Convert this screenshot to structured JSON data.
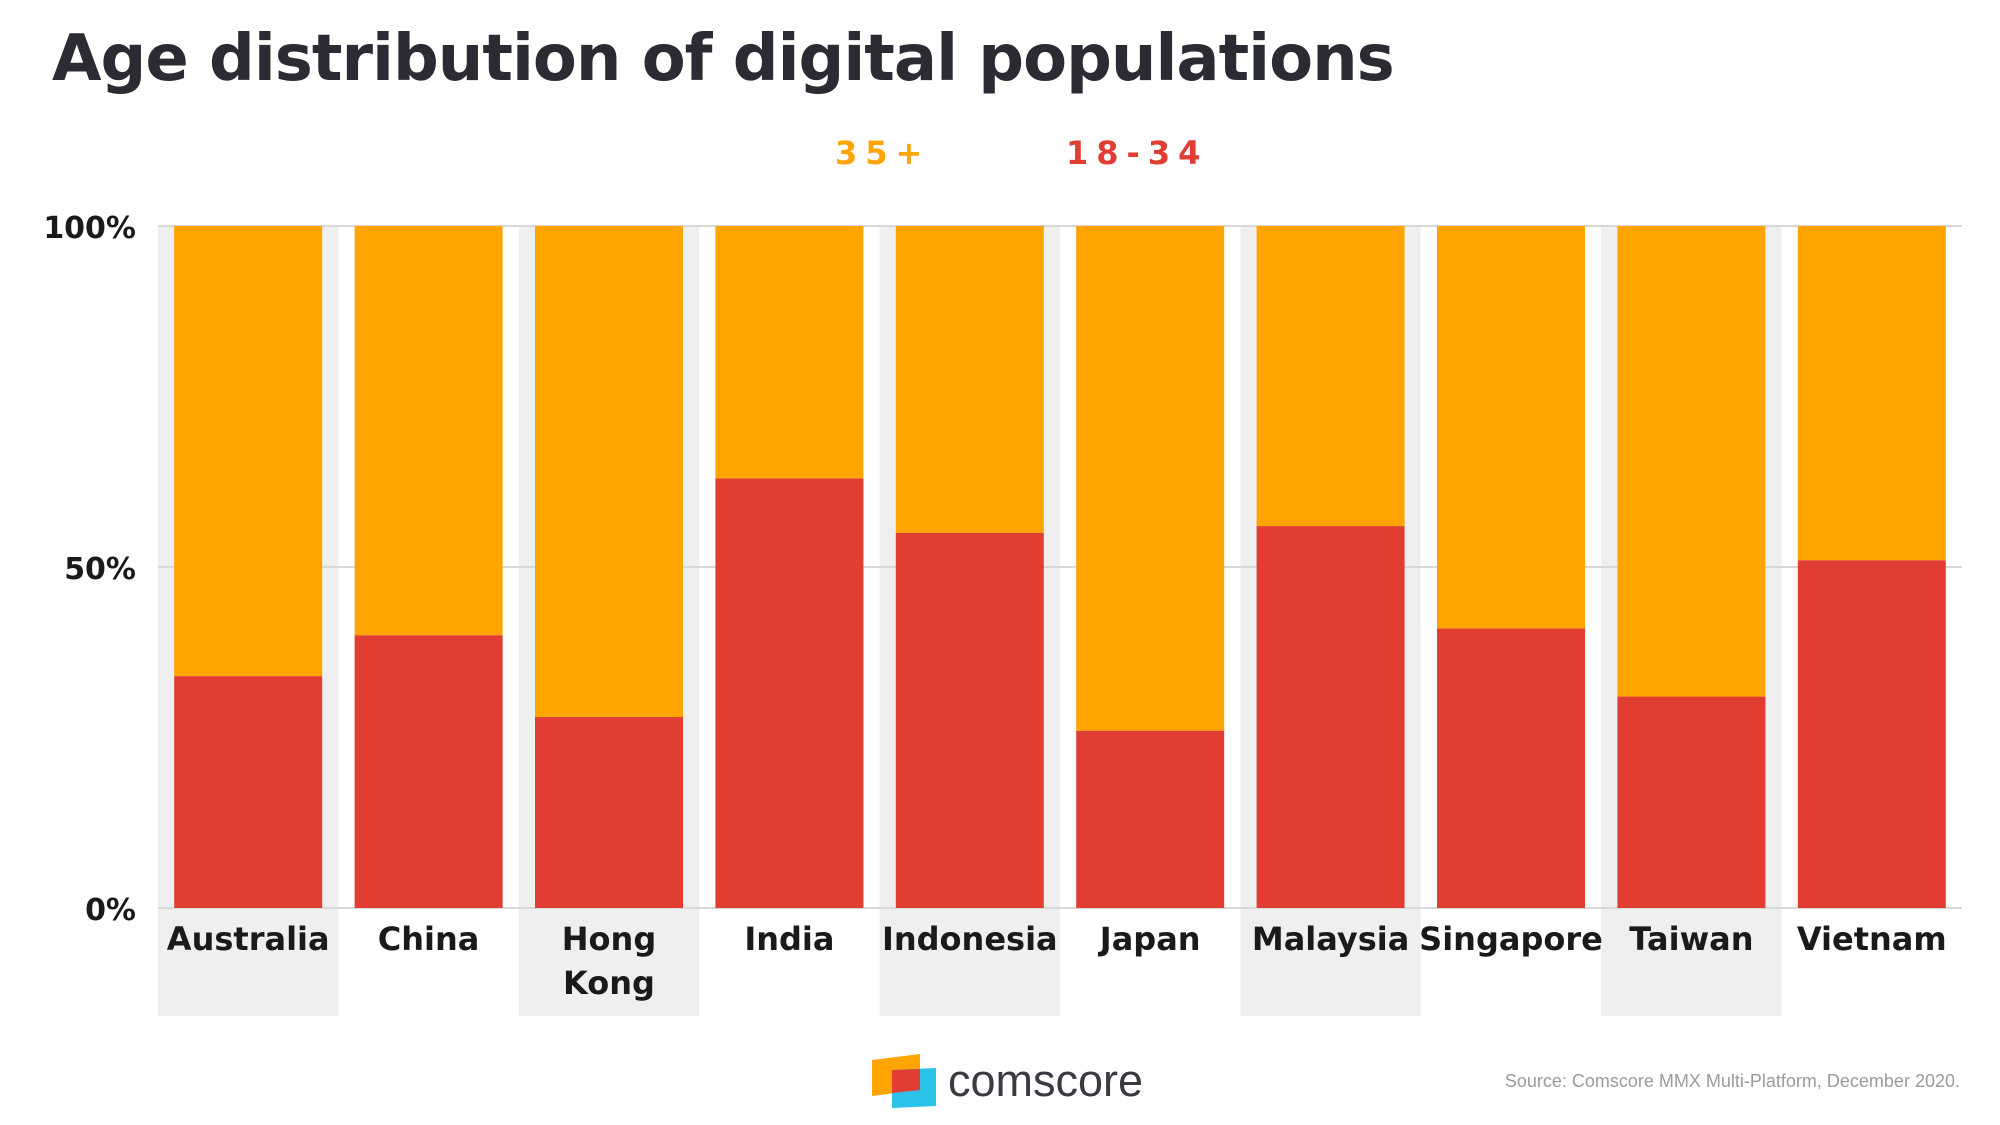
{
  "title": "Age distribution of digital populations",
  "chart_data": {
    "type": "bar",
    "stacked": true,
    "percent": true,
    "categories": [
      "Australia",
      "China",
      "Hong Kong",
      "India",
      "Indonesia",
      "Japan",
      "Malaysia",
      "Singapore",
      "Taiwan",
      "Vietnam"
    ],
    "series": [
      {
        "name": "18-34",
        "color": "#e23d33",
        "values": [
          34,
          40,
          28,
          63,
          55,
          26,
          56,
          41,
          31,
          51
        ]
      },
      {
        "name": "35+",
        "color": "#ffa400",
        "values": [
          66,
          60,
          72,
          37,
          45,
          74,
          44,
          59,
          69,
          49
        ]
      }
    ],
    "legend": [
      {
        "label": "35+",
        "color": "#ffa400"
      },
      {
        "label": "18-34",
        "color": "#e23d33"
      }
    ],
    "yticks": [
      "0%",
      "50%",
      "100%"
    ],
    "ylim": [
      0,
      100
    ],
    "grid": true,
    "legend_position": "top-center"
  },
  "footer": {
    "brand": "comscore",
    "source": "Source: Comscore MMX Multi-Platform, December 2020."
  }
}
